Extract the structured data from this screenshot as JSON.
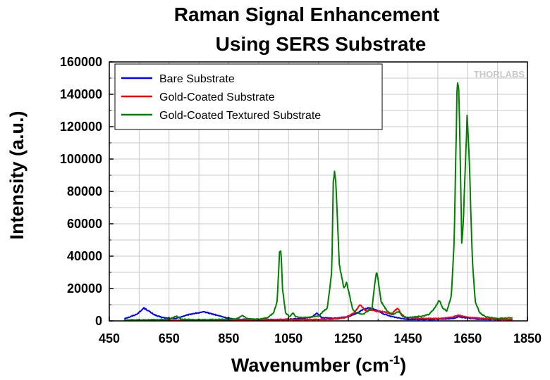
{
  "chart_data": {
    "type": "line",
    "title_lines": [
      "Raman Signal Enhancement",
      "Using SERS Substrate"
    ],
    "xlabel_main": "Wavenumber (cm",
    "xlabel_sup": "-1",
    "xlabel_close": ")",
    "ylabel": "Intensity (a.u.)",
    "xlim": [
      450,
      1850
    ],
    "ylim": [
      0,
      160000
    ],
    "xticks": [
      450,
      650,
      850,
      1050,
      1250,
      1450,
      1650,
      1850
    ],
    "yticks": [
      0,
      20000,
      40000,
      60000,
      80000,
      100000,
      120000,
      140000,
      160000
    ],
    "grid": true,
    "legend_position": "top-left",
    "watermark": "THORLABS",
    "series": [
      {
        "name": "Bare Substrate",
        "color": "#0000ff",
        "points": [
          [
            500,
            1500
          ],
          [
            520,
            2500
          ],
          [
            540,
            4000
          ],
          [
            555,
            6000
          ],
          [
            565,
            8000
          ],
          [
            575,
            7000
          ],
          [
            590,
            5000
          ],
          [
            610,
            3000
          ],
          [
            630,
            2000
          ],
          [
            650,
            1500
          ],
          [
            670,
            1500
          ],
          [
            690,
            2500
          ],
          [
            710,
            3500
          ],
          [
            730,
            4500
          ],
          [
            750,
            5000
          ],
          [
            770,
            5500
          ],
          [
            790,
            4500
          ],
          [
            810,
            3500
          ],
          [
            830,
            2500
          ],
          [
            850,
            1500
          ],
          [
            880,
            1000
          ],
          [
            950,
            800
          ],
          [
            1000,
            800
          ],
          [
            1050,
            1000
          ],
          [
            1100,
            1500
          ],
          [
            1130,
            2500
          ],
          [
            1145,
            5000
          ],
          [
            1160,
            2000
          ],
          [
            1200,
            1500
          ],
          [
            1250,
            2500
          ],
          [
            1280,
            5000
          ],
          [
            1300,
            7000
          ],
          [
            1320,
            8000
          ],
          [
            1340,
            7000
          ],
          [
            1360,
            5000
          ],
          [
            1380,
            3500
          ],
          [
            1400,
            2500
          ],
          [
            1430,
            1500
          ],
          [
            1450,
            1000
          ],
          [
            1500,
            800
          ],
          [
            1550,
            900
          ],
          [
            1600,
            1500
          ],
          [
            1620,
            2500
          ],
          [
            1640,
            2000
          ],
          [
            1660,
            1500
          ],
          [
            1700,
            1000
          ],
          [
            1750,
            800
          ],
          [
            1800,
            700
          ]
        ]
      },
      {
        "name": "Gold-Coated Substrate",
        "color": "#ff0000",
        "points": [
          [
            500,
            300
          ],
          [
            600,
            300
          ],
          [
            700,
            400
          ],
          [
            800,
            500
          ],
          [
            900,
            600
          ],
          [
            1000,
            700
          ],
          [
            1100,
            800
          ],
          [
            1200,
            1000
          ],
          [
            1240,
            2000
          ],
          [
            1270,
            5000
          ],
          [
            1290,
            10000
          ],
          [
            1300,
            8000
          ],
          [
            1310,
            6000
          ],
          [
            1320,
            7000
          ],
          [
            1340,
            6000
          ],
          [
            1360,
            6000
          ],
          [
            1380,
            5000
          ],
          [
            1395,
            4000
          ],
          [
            1405,
            6000
          ],
          [
            1415,
            8000
          ],
          [
            1425,
            5000
          ],
          [
            1440,
            2000
          ],
          [
            1500,
            1500
          ],
          [
            1560,
            1500
          ],
          [
            1600,
            2500
          ],
          [
            1620,
            3500
          ],
          [
            1640,
            2500
          ],
          [
            1660,
            2000
          ],
          [
            1700,
            1500
          ],
          [
            1750,
            1000
          ],
          [
            1800,
            800
          ]
        ]
      },
      {
        "name": "Gold-Coated Textured Substrate",
        "color": "#008000",
        "points": [
          [
            500,
            500
          ],
          [
            600,
            700
          ],
          [
            650,
            1000
          ],
          [
            675,
            3000
          ],
          [
            690,
            1000
          ],
          [
            750,
            800
          ],
          [
            850,
            1000
          ],
          [
            880,
            1500
          ],
          [
            895,
            3500
          ],
          [
            910,
            1500
          ],
          [
            950,
            1000
          ],
          [
            980,
            2000
          ],
          [
            1000,
            5000
          ],
          [
            1012,
            12000
          ],
          [
            1020,
            42000
          ],
          [
            1025,
            44000
          ],
          [
            1030,
            20000
          ],
          [
            1040,
            5000
          ],
          [
            1055,
            2500
          ],
          [
            1065,
            5000
          ],
          [
            1075,
            2500
          ],
          [
            1100,
            2000
          ],
          [
            1150,
            3000
          ],
          [
            1180,
            8000
          ],
          [
            1195,
            30000
          ],
          [
            1200,
            85000
          ],
          [
            1205,
            92000
          ],
          [
            1210,
            80000
          ],
          [
            1220,
            35000
          ],
          [
            1235,
            20000
          ],
          [
            1245,
            24000
          ],
          [
            1255,
            15000
          ],
          [
            1265,
            7000
          ],
          [
            1280,
            5000
          ],
          [
            1300,
            4000
          ],
          [
            1330,
            8000
          ],
          [
            1340,
            25000
          ],
          [
            1345,
            31000
          ],
          [
            1350,
            25000
          ],
          [
            1360,
            12000
          ],
          [
            1380,
            6000
          ],
          [
            1400,
            4000
          ],
          [
            1420,
            6000
          ],
          [
            1430,
            3000
          ],
          [
            1450,
            2000
          ],
          [
            1500,
            3000
          ],
          [
            1520,
            4000
          ],
          [
            1540,
            8000
          ],
          [
            1555,
            13000
          ],
          [
            1565,
            8000
          ],
          [
            1580,
            6000
          ],
          [
            1595,
            15000
          ],
          [
            1605,
            50000
          ],
          [
            1615,
            150000
          ],
          [
            1620,
            145000
          ],
          [
            1625,
            100000
          ],
          [
            1630,
            48000
          ],
          [
            1635,
            60000
          ],
          [
            1643,
            100000
          ],
          [
            1648,
            127000
          ],
          [
            1655,
            100000
          ],
          [
            1665,
            40000
          ],
          [
            1675,
            12000
          ],
          [
            1690,
            5000
          ],
          [
            1710,
            2500
          ],
          [
            1750,
            1500
          ],
          [
            1800,
            2000
          ]
        ]
      }
    ]
  }
}
